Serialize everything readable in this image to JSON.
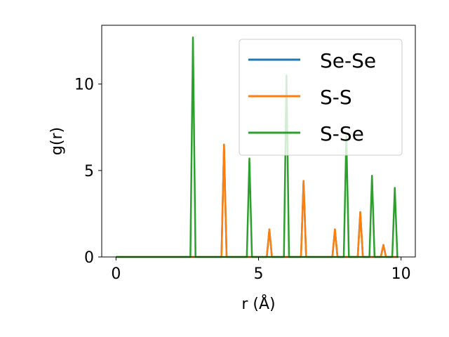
{
  "chart_data": {
    "type": "line",
    "xlabel": "r (Å)",
    "ylabel": "g(r)",
    "xlim": [
      -0.5,
      10.5
    ],
    "ylim": [
      0,
      13.4
    ],
    "x_ticks": [
      0,
      5,
      10
    ],
    "y_ticks": [
      0,
      5,
      10
    ],
    "grid": false,
    "legend_position": "top-right",
    "series": [
      {
        "name": "Se-Se",
        "color": "#1f77b4",
        "peaks": [
          {
            "r": 3.79,
            "g": 6.5
          },
          {
            "r": 5.38,
            "g": 1.6
          },
          {
            "r": 6.58,
            "g": 4.4
          },
          {
            "r": 7.68,
            "g": 1.6
          },
          {
            "r": 8.57,
            "g": 2.6
          },
          {
            "r": 9.38,
            "g": 0.7
          }
        ]
      },
      {
        "name": "S-S",
        "color": "#ff7f0e",
        "peaks": [
          {
            "r": 3.79,
            "g": 6.5
          },
          {
            "r": 5.38,
            "g": 1.6
          },
          {
            "r": 6.58,
            "g": 4.4
          },
          {
            "r": 7.68,
            "g": 1.6
          },
          {
            "r": 8.57,
            "g": 2.6
          },
          {
            "r": 9.38,
            "g": 0.7
          }
        ]
      },
      {
        "name": "S-Se",
        "color": "#2ca02c",
        "peaks": [
          {
            "r": 2.7,
            "g": 12.7
          },
          {
            "r": 4.68,
            "g": 5.7
          },
          {
            "r": 5.98,
            "g": 10.5
          },
          {
            "r": 8.08,
            "g": 7.0
          },
          {
            "r": 8.98,
            "g": 4.7
          },
          {
            "r": 9.78,
            "g": 4.0
          }
        ]
      }
    ]
  }
}
